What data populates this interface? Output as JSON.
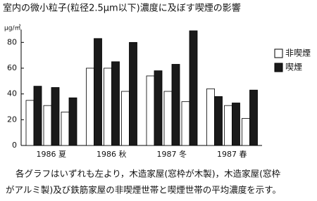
{
  "chart_data": {
    "type": "bar",
    "title": "室内の微小粒子(粒径2.5μm以下)濃度に及ぼす喫煙の影響",
    "y_label": "μg/㎥",
    "categories": [
      "1986 夏",
      "1986 秋",
      "1987 冬",
      "1987 春"
    ],
    "series": [
      {
        "name": "非喫煙",
        "color": "#ffffff",
        "values": [
          [
            35,
            31,
            26
          ],
          [
            60,
            60,
            42
          ],
          [
            54,
            42,
            34
          ],
          [
            44,
            31,
            21
          ]
        ]
      },
      {
        "name": "喫煙",
        "color": "#1a1a1a",
        "values": [
          [
            46,
            45,
            37
          ],
          [
            83,
            65,
            80
          ],
          [
            58,
            63,
            89
          ],
          [
            38,
            33,
            43
          ]
        ]
      }
    ],
    "ylim": [
      0,
      90
    ],
    "yticks": [
      0,
      20,
      40,
      60,
      80
    ],
    "grid": false,
    "legend": "right",
    "caption": [
      "各グラフはいずれも左より，木造家屋(窓枠が木製)，木造家屋(窓枠",
      "がアルミ製)及び鉄筋家屋の非喫煙世帯と喫煙世帯の平均濃度を示す。"
    ]
  }
}
